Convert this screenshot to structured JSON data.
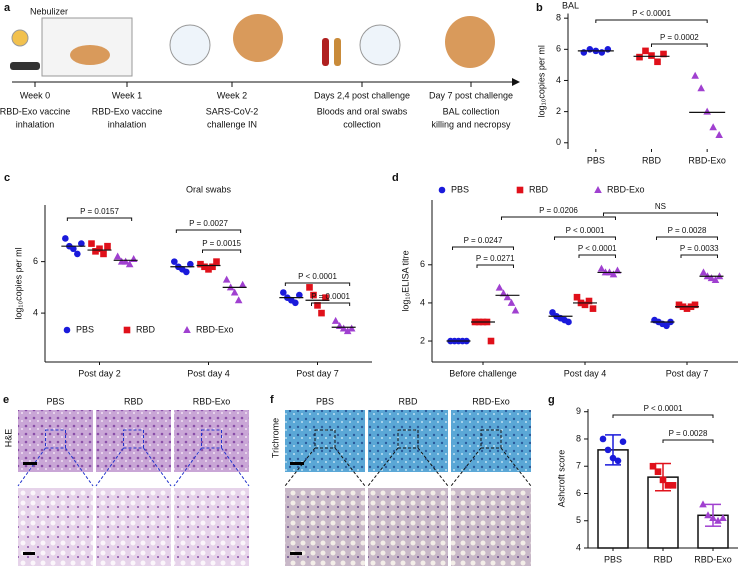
{
  "timeline": {
    "panel": "a",
    "device": "Nebulizer",
    "steps": [
      {
        "time": "Week 0",
        "event": [
          "RBD-Exo vaccine",
          "inhalation"
        ]
      },
      {
        "time": "Week 1",
        "event": [
          "RBD-Exo vaccine",
          "inhalation"
        ]
      },
      {
        "time": "Week 2",
        "event": [
          "SARS-CoV-2",
          "challenge IN"
        ]
      },
      {
        "time": "Days 2,4 post challenge",
        "event": [
          "Bloods and oral swabs",
          "collection"
        ]
      },
      {
        "time": "Day 7 post challenge",
        "event": [
          "BAL collection",
          "killing and necropsy"
        ]
      }
    ]
  },
  "histology": [
    {
      "panel": "e",
      "stain": "H&E",
      "columns": [
        "PBS",
        "RBD",
        "RBD-Exo"
      ]
    },
    {
      "panel": "f",
      "stain": "Trichrome",
      "columns": [
        "PBS",
        "RBD",
        "RBD-Exo"
      ]
    }
  ],
  "chart_data": [
    {
      "type": "dot",
      "panel": "b",
      "title": "BAL",
      "ylabel": "log₁₀copies per ml",
      "categories": [
        "PBS",
        "RBD",
        "RBD-Exo"
      ],
      "colors": [
        "#1a1adb",
        "#e0101a",
        "#a040d0"
      ],
      "markers": [
        "circle",
        "square",
        "triangle"
      ],
      "values": [
        [
          5.8,
          6.0,
          5.9,
          5.8,
          6.0
        ],
        [
          5.5,
          5.9,
          5.6,
          5.2,
          5.7
        ],
        [
          4.3,
          3.5,
          2.0,
          1.0,
          0.5
        ]
      ],
      "means": [
        5.9,
        5.55,
        1.95
      ],
      "ylim": [
        -0.4,
        8.3
      ],
      "yticks": [
        0,
        2,
        4,
        6,
        8
      ],
      "annotations": [
        "P < 0.0001",
        "P = 0.0002"
      ]
    },
    {
      "type": "grouped-dot",
      "panel": "c",
      "title": "Oral swabs",
      "ylabel": "log₁₀copies per ml",
      "categories": [
        "Post day 2",
        "Post day 4",
        "Post day 7"
      ],
      "series": [
        {
          "name": "PBS",
          "color": "#1a1adb",
          "marker": "circle",
          "values": [
            [
              6.9,
              6.6,
              6.5,
              6.3,
              6.7
            ],
            [
              6.0,
              5.8,
              5.7,
              5.6,
              5.9
            ],
            [
              4.8,
              4.6,
              4.5,
              4.4,
              4.7
            ]
          ],
          "means": [
            6.6,
            5.8,
            4.6
          ]
        },
        {
          "name": "RBD",
          "color": "#e0101a",
          "marker": "square",
          "values": [
            [
              6.7,
              6.4,
              6.5,
              6.3,
              6.6
            ],
            [
              5.9,
              5.8,
              5.7,
              5.8,
              6.0
            ],
            [
              5.0,
              4.7,
              4.3,
              4.0,
              4.6
            ]
          ],
          "means": [
            6.45,
            5.85,
            4.5
          ]
        },
        {
          "name": "RBD-Exo",
          "color": "#a040d0",
          "marker": "triangle",
          "values": [
            [
              6.2,
              6.0,
              6.0,
              5.9,
              6.1
            ],
            [
              5.3,
              5.0,
              4.8,
              4.5,
              5.1
            ],
            [
              3.7,
              3.5,
              3.4,
              3.3,
              3.4
            ]
          ],
          "means": [
            6.05,
            5.0,
            3.45
          ]
        }
      ],
      "ylim": [
        2.1,
        8.2
      ],
      "yticks": [
        4,
        6
      ],
      "legend": "bottom",
      "annotations": [
        "P = 0.0157",
        "P = 0.0027",
        "P = 0.0015",
        "P < 0.0001",
        "P = 0.0001"
      ]
    },
    {
      "type": "grouped-dot",
      "panel": "d",
      "ylabel": "log₁₀ELISA titre",
      "categories": [
        "Before challenge",
        "Post day 4",
        "Post day 7"
      ],
      "series": [
        {
          "name": "PBS",
          "color": "#1a1adb",
          "marker": "circle",
          "values": [
            [
              2,
              2,
              2,
              2,
              2
            ],
            [
              3.5,
              3.3,
              3.2,
              3.1,
              3.0
            ],
            [
              3.1,
              3.0,
              2.9,
              2.8,
              3.0
            ]
          ],
          "means": [
            2,
            3.3,
            3.0
          ]
        },
        {
          "name": "RBD",
          "color": "#e0101a",
          "marker": "square",
          "values": [
            [
              3,
              3,
              3,
              3,
              2
            ],
            [
              4.3,
              4.0,
              3.9,
              4.1,
              3.7
            ],
            [
              3.9,
              3.8,
              3.7,
              3.8,
              3.9
            ]
          ],
          "means": [
            3,
            4.0,
            3.8
          ]
        },
        {
          "name": "RBD-Exo",
          "color": "#a040d0",
          "marker": "triangle",
          "values": [
            [
              4.8,
              4.5,
              4.3,
              4.0,
              3.6
            ],
            [
              5.8,
              5.6,
              5.6,
              5.5,
              5.7
            ],
            [
              5.6,
              5.4,
              5.3,
              5.2,
              5.4
            ]
          ],
          "means": [
            4.4,
            5.6,
            5.4
          ]
        }
      ],
      "ylim": [
        0.9,
        9.4
      ],
      "yticks": [
        2,
        4,
        6
      ],
      "legend": "top",
      "annotations": [
        "P = 0.0247",
        "P = 0.0271",
        "P = 0.0206",
        "P < 0.0001",
        "P < 0.0001",
        "NS",
        "P = 0.0028",
        "P = 0.0033"
      ]
    },
    {
      "type": "bar",
      "panel": "g",
      "ylabel": "Ashcroft score",
      "categories": [
        "PBS",
        "RBD",
        "RBD-Exo"
      ],
      "colors": [
        "#1a1adb",
        "#e0101a",
        "#a040d0"
      ],
      "markers": [
        "circle",
        "square",
        "triangle"
      ],
      "values": [
        7.6,
        6.6,
        5.2
      ],
      "errors": [
        0.55,
        0.5,
        0.4
      ],
      "points": [
        [
          8.0,
          7.6,
          7.3,
          7.2,
          7.9
        ],
        [
          7.0,
          6.8,
          6.5,
          6.3,
          6.3
        ],
        [
          5.6,
          5.2,
          5.1,
          5.0,
          5.1
        ]
      ],
      "ylim": [
        4,
        9.1
      ],
      "yticks": [
        4,
        5,
        6,
        7,
        8,
        9
      ],
      "annotations": [
        "P < 0.0001",
        "P = 0.0028"
      ]
    }
  ]
}
